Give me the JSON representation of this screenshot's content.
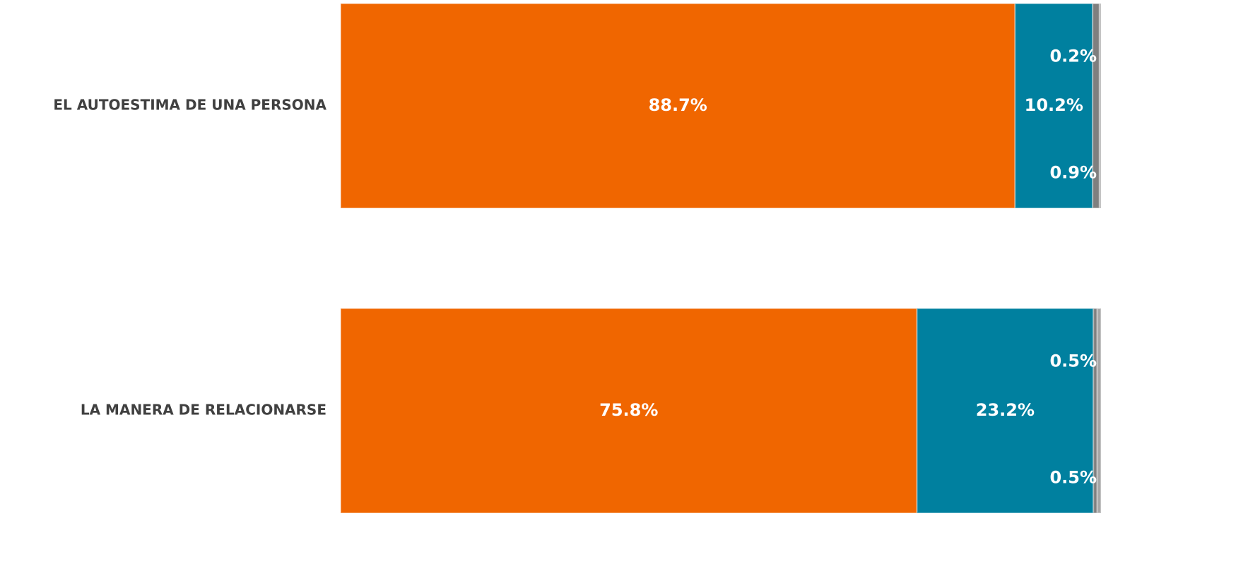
{
  "chart_data": {
    "type": "stacked_barh",
    "categories": [
      "EL AUTOESTIMA DE UNA PERSONA",
      "LA MANERA DE RELACIONARSE"
    ],
    "xlim": [
      0,
      100
    ],
    "series": [
      {
        "color": "#f06600",
        "values": [
          88.7,
          75.8
        ],
        "value_labels": [
          "88.7%",
          "75.8%"
        ]
      },
      {
        "color": "#00809f",
        "values": [
          10.2,
          23.2
        ],
        "value_labels": [
          "10.2%",
          "23.2%"
        ]
      },
      {
        "color": "#7f7f7f",
        "values": [
          0.9,
          0.5
        ],
        "value_labels": [
          "0.9%",
          "0.5%"
        ]
      },
      {
        "color": "#a6a6a6",
        "values": [
          0.2,
          0.5
        ],
        "value_labels": [
          "0.2%",
          "0.5%"
        ]
      }
    ]
  }
}
